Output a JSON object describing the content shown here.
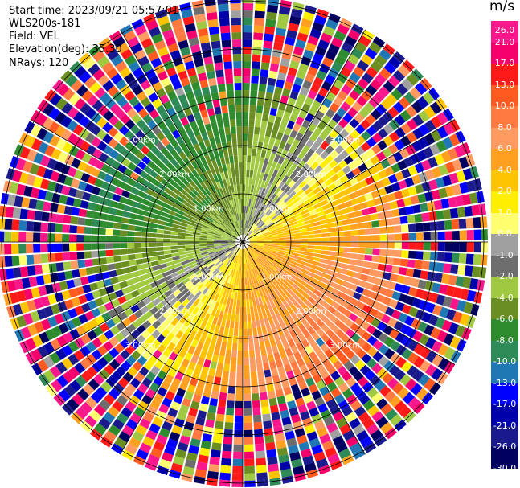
{
  "header": {
    "start_time": "Start time: 2023/09/21 05:57:01",
    "instrument": "WLS200s-181",
    "field": "Field: VEL",
    "elevation": "Elevation(deg): 35.30",
    "nrays": "NRays: 120"
  },
  "colorbar": {
    "unit": "m/s",
    "ticks": [
      "26.0",
      "21.0",
      "17.0",
      "13.0",
      "10.0",
      "8.0",
      "6.0",
      "4.0",
      "2.0",
      "1.0",
      "0.0",
      "-1.0",
      "-2.0",
      "-4.0",
      "-6.0",
      "-8.0",
      "-10.0",
      "-13.0",
      "-17.0",
      "-21.0",
      "-26.0",
      "-30.0"
    ],
    "colors": [
      "#f9188c",
      "#f5006a",
      "#ff1a1a",
      "#ff5a20",
      "#ff7a40",
      "#ff9a60",
      "#ffa020",
      "#ffc400",
      "#ffee00",
      "#ffff70",
      "#a0a0a0",
      "#6e6e6e",
      "#a0c840",
      "#6b8e23",
      "#2e8b2e",
      "#2e8b57",
      "#1f77b4",
      "#0000ff",
      "#0000aa",
      "#1a1a8c",
      "#000060"
    ]
  },
  "chart_data": {
    "type": "polar_ppi",
    "field": "VEL",
    "unit": "m/s",
    "nrays": 120,
    "elevation_deg": 35.3,
    "range_rings_km": [
      1.0,
      2.0,
      3.0
    ],
    "range_ring_labels": [
      "1.00km",
      "2.00km",
      "3.00km"
    ],
    "vmin": -30.0,
    "vmax": 26.0,
    "pattern": "towards (negative/green-blue) in north-west sector, away (positive/yellow-orange) in south-east sector, noisy random velocities beyond ~3 km"
  }
}
